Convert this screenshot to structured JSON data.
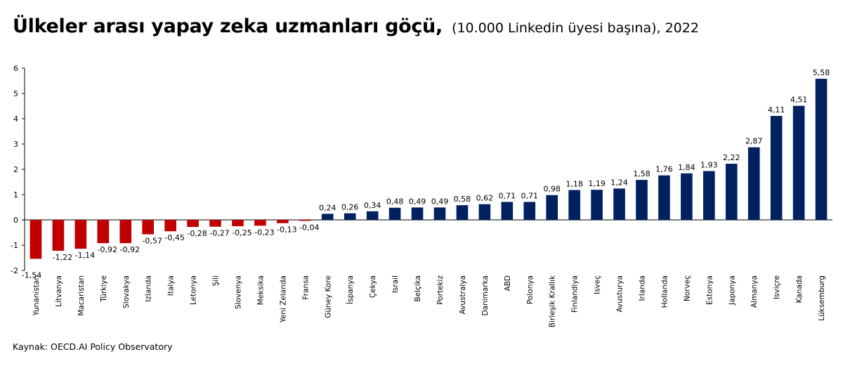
{
  "title": "Ülkeler arası yapay zeka uzmanları göçü,",
  "subtitle": "(10.000 Linkedin üyesi başına), 2022",
  "source": "Kaynak: OECD.AI Policy Observatory",
  "colors": {
    "negative": "#C00000",
    "positive": "#002060"
  },
  "chart_data": {
    "type": "bar",
    "categories": [
      "Yunanistan",
      "Litvanya",
      "Macaristan",
      "Türkiye",
      "Slovakya",
      "Izlanda",
      "Italya",
      "Letonya",
      "Şili",
      "Slovenya",
      "Meksika",
      "Yeni Zelanda",
      "Fransa",
      "Güney Kore",
      "İspanya",
      "Çekya",
      "Israil",
      "Belçika",
      "Portekiz",
      "Avustralya",
      "Danimarka",
      "ABD",
      "Polonya",
      "Birleşik Krallık",
      "Finlandiya",
      "Isveç",
      "Avusturya",
      "Irlanda",
      "Hollanda",
      "Norveç",
      "Estonya",
      "Japonya",
      "Almanya",
      "Isviçre",
      "Kanada",
      "Lüksemburg"
    ],
    "values": [
      -1.54,
      -1.22,
      -1.14,
      -0.92,
      -0.92,
      -0.57,
      -0.45,
      -0.28,
      -0.27,
      -0.25,
      -0.23,
      -0.13,
      -0.04,
      0.24,
      0.26,
      0.34,
      0.48,
      0.49,
      0.49,
      0.58,
      0.62,
      0.71,
      0.71,
      0.98,
      1.18,
      1.19,
      1.24,
      1.58,
      1.76,
      1.84,
      1.93,
      2.22,
      2.87,
      4.11,
      4.51,
      5.58
    ],
    "labels": [
      "-1,54",
      "-1,22",
      "-1,14",
      "-0,92",
      "-0,92",
      "-0,57",
      "-0,45",
      "-0,28",
      "-0,27",
      "-0,25",
      "-0,23",
      "-0,13",
      "-0,04",
      "0,24",
      "0,26",
      "0,34",
      "0,48",
      "0,49",
      "0,49",
      "0,58",
      "0,62",
      "0,71",
      "0,71",
      "0,98",
      "1,18",
      "1,19",
      "1,24",
      "1,58",
      "1,76",
      "1,84",
      "1,93",
      "2,22",
      "2,87",
      "4,11",
      "4,51",
      "5,58"
    ],
    "yticks": [
      "-2",
      "-1",
      "0",
      "1",
      "2",
      "3",
      "4",
      "5",
      "6"
    ],
    "ylim": [
      -2,
      6
    ],
    "xlabel": "",
    "ylabel": "",
    "grid": false,
    "legend": "none"
  }
}
